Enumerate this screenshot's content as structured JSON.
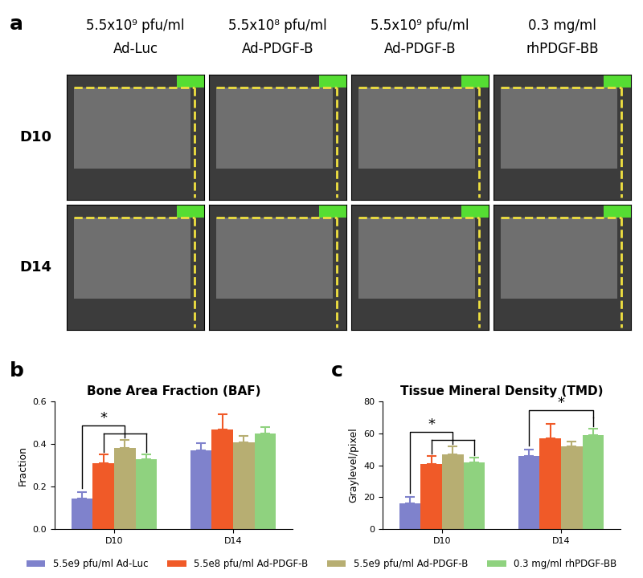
{
  "panel_labels": [
    "a",
    "b",
    "c"
  ],
  "panel_a": {
    "columns": [
      {
        "line1": "5.5x10⁹ pfu/ml",
        "line2": "Ad-Luc"
      },
      {
        "line1": "5.5x10⁸ pfu/ml",
        "line2": "Ad-PDGF-B"
      },
      {
        "line1": "5.5x10⁹ pfu/ml",
        "line2": "Ad-PDGF-B"
      },
      {
        "line1": "0.3 mg/ml",
        "line2": "rhPDGF-BB"
      }
    ],
    "rows": [
      "D10",
      "D14"
    ]
  },
  "chart_data": [
    {
      "type": "bar",
      "title": "Bone Area Fraction (BAF)",
      "y_label": "Fraction",
      "categories": [
        "D10",
        "D14"
      ],
      "series": [
        {
          "name": "5.5e9 pfu/ml Ad-Luc",
          "color": "#7f82cc",
          "values": [
            0.145,
            0.37
          ],
          "errors": [
            0.03,
            0.035
          ]
        },
        {
          "name": "5.5e8 pfu/ml Ad-PDGF-B",
          "color": "#f05a28",
          "values": [
            0.31,
            0.47
          ],
          "errors": [
            0.04,
            0.07
          ]
        },
        {
          "name": "5.5e9 pfu/ml Ad-PDGF-B",
          "color": "#b7ae72",
          "values": [
            0.38,
            0.41
          ],
          "errors": [
            0.04,
            0.03
          ]
        },
        {
          "name": "0.3 mg/ml rhPDGF-BB",
          "color": "#8fd27f",
          "values": [
            0.33,
            0.45
          ],
          "errors": [
            0.02,
            0.03
          ]
        }
      ],
      "ylim": [
        0,
        0.6
      ],
      "yticks": [
        {
          "value": 0,
          "label": "0.0"
        },
        0.2,
        0.4,
        0.6
      ],
      "legend": "lower center",
      "significance": [
        {
          "category": "D10",
          "from": "5.5e9 pfu/ml Ad-Luc",
          "to": [
            "5.5e8 pfu/ml Ad-PDGF-B",
            "5.5e9 pfu/ml Ad-PDGF-B",
            "0.3 mg/ml rhPDGF-BB"
          ],
          "label": "*"
        }
      ]
    },
    {
      "type": "bar",
      "title": "Tissue Mineral Density (TMD)",
      "y_label": "Graylevel/pixel",
      "categories": [
        "D10",
        "D14"
      ],
      "series": [
        {
          "name": "5.5e9 pfu/ml Ad-Luc",
          "color": "#7f82cc",
          "values": [
            16,
            46
          ],
          "errors": [
            4,
            4
          ]
        },
        {
          "name": "5.5e8 pfu/ml Ad-PDGF-B",
          "color": "#f05a28",
          "values": [
            41,
            57
          ],
          "errors": [
            5,
            9
          ]
        },
        {
          "name": "5.5e9 pfu/ml Ad-PDGF-B",
          "color": "#b7ae72",
          "values": [
            47,
            52
          ],
          "errors": [
            5,
            3
          ]
        },
        {
          "name": "0.3 mg/ml rhPDGF-BB",
          "color": "#8fd27f",
          "values": [
            42,
            59
          ],
          "errors": [
            3,
            4
          ]
        }
      ],
      "ylim": [
        0,
        80
      ],
      "yticks": [
        0,
        20,
        40,
        60,
        80
      ],
      "significance": [
        {
          "category": "D10",
          "from": "5.5e9 pfu/ml Ad-Luc",
          "to": [
            "5.5e8 pfu/ml Ad-PDGF-B",
            "5.5e9 pfu/ml Ad-PDGF-B",
            "0.3 mg/ml rhPDGF-BB"
          ],
          "label": "*"
        },
        {
          "category": "D14",
          "from": "5.5e9 pfu/ml Ad-Luc",
          "to": [
            "0.3 mg/ml rhPDGF-BB"
          ],
          "label": "*"
        }
      ]
    }
  ]
}
